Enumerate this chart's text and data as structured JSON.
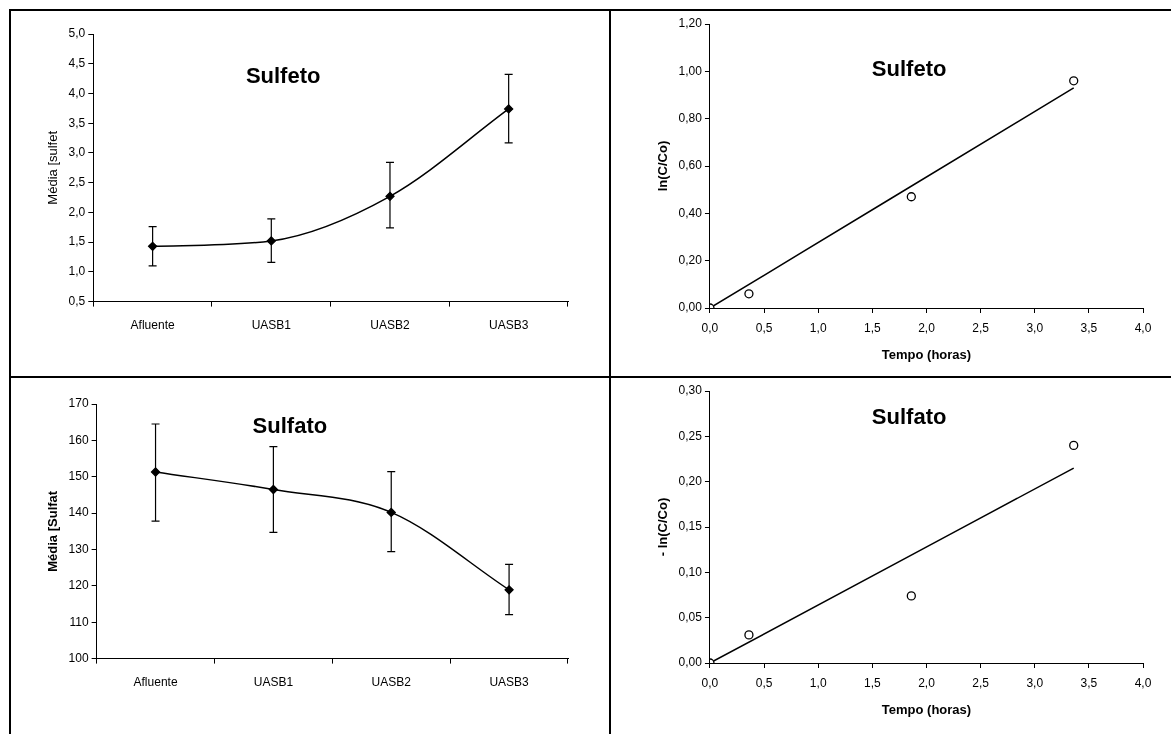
{
  "chart_data": [
    {
      "type": "line",
      "title": "Sulfeto",
      "ylabel": "Média [sulfet",
      "categories": [
        "Afluente",
        "UASB1",
        "UASB2",
        "UASB3"
      ],
      "values": [
        1.43,
        1.52,
        2.27,
        3.74
      ],
      "errors": [
        [
          1.1,
          1.76
        ],
        [
          1.16,
          1.89
        ],
        [
          1.74,
          2.84
        ],
        [
          3.17,
          4.32
        ]
      ],
      "color": "#000000",
      "marker": "diamond",
      "ylim": [
        0.5,
        5.0
      ],
      "yticks": [
        {
          "value": 0.5,
          "label": "0,5"
        },
        {
          "value": 1.0,
          "label": "1,0"
        },
        {
          "value": 1.5,
          "label": "1,5"
        },
        {
          "value": 2.0,
          "label": "2,0"
        },
        {
          "value": 2.5,
          "label": "2,5"
        },
        {
          "value": 3.0,
          "label": "3,0"
        },
        {
          "value": 3.5,
          "label": "3,5"
        },
        {
          "value": 4.0,
          "label": "4,0"
        },
        {
          "value": 4.5,
          "label": "4,5"
        },
        {
          "value": 5.0,
          "label": "5,0"
        }
      ]
    },
    {
      "type": "scatter",
      "title": "Sulfeto",
      "xlabel": "Tempo (horas)",
      "ylabel": "ln(C/Co)",
      "series": [
        {
          "type": "scatter",
          "color": "#000000",
          "marker": "circle",
          "x": [
            0,
            0.36,
            1.86,
            3.36
          ],
          "values": [
            0,
            0.06,
            0.47,
            0.96
          ]
        },
        {
          "type": "line",
          "color": "#000000",
          "marker": "none",
          "x": [
            0,
            3.36
          ],
          "values": [
            0,
            0.93
          ]
        }
      ],
      "xlim": [
        0,
        4
      ],
      "xticks": [
        {
          "value": 0,
          "label": "0,0"
        },
        {
          "value": 0.5,
          "label": "0,5"
        },
        {
          "value": 1,
          "label": "1,0"
        },
        {
          "value": 1.5,
          "label": "1,5"
        },
        {
          "value": 2,
          "label": "2,0"
        },
        {
          "value": 2.5,
          "label": "2,5"
        },
        {
          "value": 3,
          "label": "3,0"
        },
        {
          "value": 3.5,
          "label": "3,5"
        },
        {
          "value": 4,
          "label": "4,0"
        }
      ],
      "ylim": [
        0,
        1.2
      ],
      "yticks": [
        {
          "value": 0,
          "label": "0,00"
        },
        {
          "value": 0.2,
          "label": "0,20"
        },
        {
          "value": 0.4,
          "label": "0,40"
        },
        {
          "value": 0.6,
          "label": "0,60"
        },
        {
          "value": 0.8,
          "label": "0,80"
        },
        {
          "value": 1.0,
          "label": "1,00"
        },
        {
          "value": 1.2,
          "label": "1,20"
        }
      ]
    },
    {
      "type": "line",
      "title": "Sulfato",
      "ylabel": "Média [Sulfat",
      "categories": [
        "Afluente",
        "UASB1",
        "UASB2",
        "UASB3"
      ],
      "values": [
        151.3,
        146.5,
        140.2,
        118.9
      ],
      "errors": [
        [
          137.8,
          164.5
        ],
        [
          134.7,
          158.3
        ],
        [
          129.4,
          151.4
        ],
        [
          112.1,
          125.9
        ]
      ],
      "color": "#000000",
      "marker": "diamond",
      "ylim": [
        100,
        170
      ],
      "yticks": [
        100,
        110,
        120,
        130,
        140,
        150,
        160,
        170
      ]
    },
    {
      "type": "scatter",
      "title": "Sulfato",
      "xlabel": "Tempo (horas)",
      "ylabel": "- ln(C/Co)",
      "series": [
        {
          "type": "scatter",
          "color": "#000000",
          "marker": "circle",
          "x": [
            0,
            0.36,
            1.86,
            3.36
          ],
          "values": [
            0,
            0.031,
            0.074,
            0.24
          ]
        },
        {
          "type": "line",
          "color": "#000000",
          "marker": "none",
          "x": [
            0,
            3.36
          ],
          "values": [
            0,
            0.215
          ]
        }
      ],
      "xlim": [
        0,
        4
      ],
      "xticks": [
        {
          "value": 0,
          "label": "0,0"
        },
        {
          "value": 0.5,
          "label": "0,5"
        },
        {
          "value": 1,
          "label": "1,0"
        },
        {
          "value": 1.5,
          "label": "1,5"
        },
        {
          "value": 2,
          "label": "2,0"
        },
        {
          "value": 2.5,
          "label": "2,5"
        },
        {
          "value": 3,
          "label": "3,0"
        },
        {
          "value": 3.5,
          "label": "3,5"
        },
        {
          "value": 4,
          "label": "4,0"
        }
      ],
      "ylim": [
        0,
        0.3
      ],
      "yticks": [
        {
          "value": 0,
          "label": "0,00"
        },
        {
          "value": 0.05,
          "label": "0,05"
        },
        {
          "value": 0.1,
          "label": "0,10"
        },
        {
          "value": 0.15,
          "label": "0,15"
        },
        {
          "value": 0.2,
          "label": "0,20"
        },
        {
          "value": 0.25,
          "label": "0,25"
        },
        {
          "value": 0.3,
          "label": "0,30"
        }
      ]
    }
  ]
}
